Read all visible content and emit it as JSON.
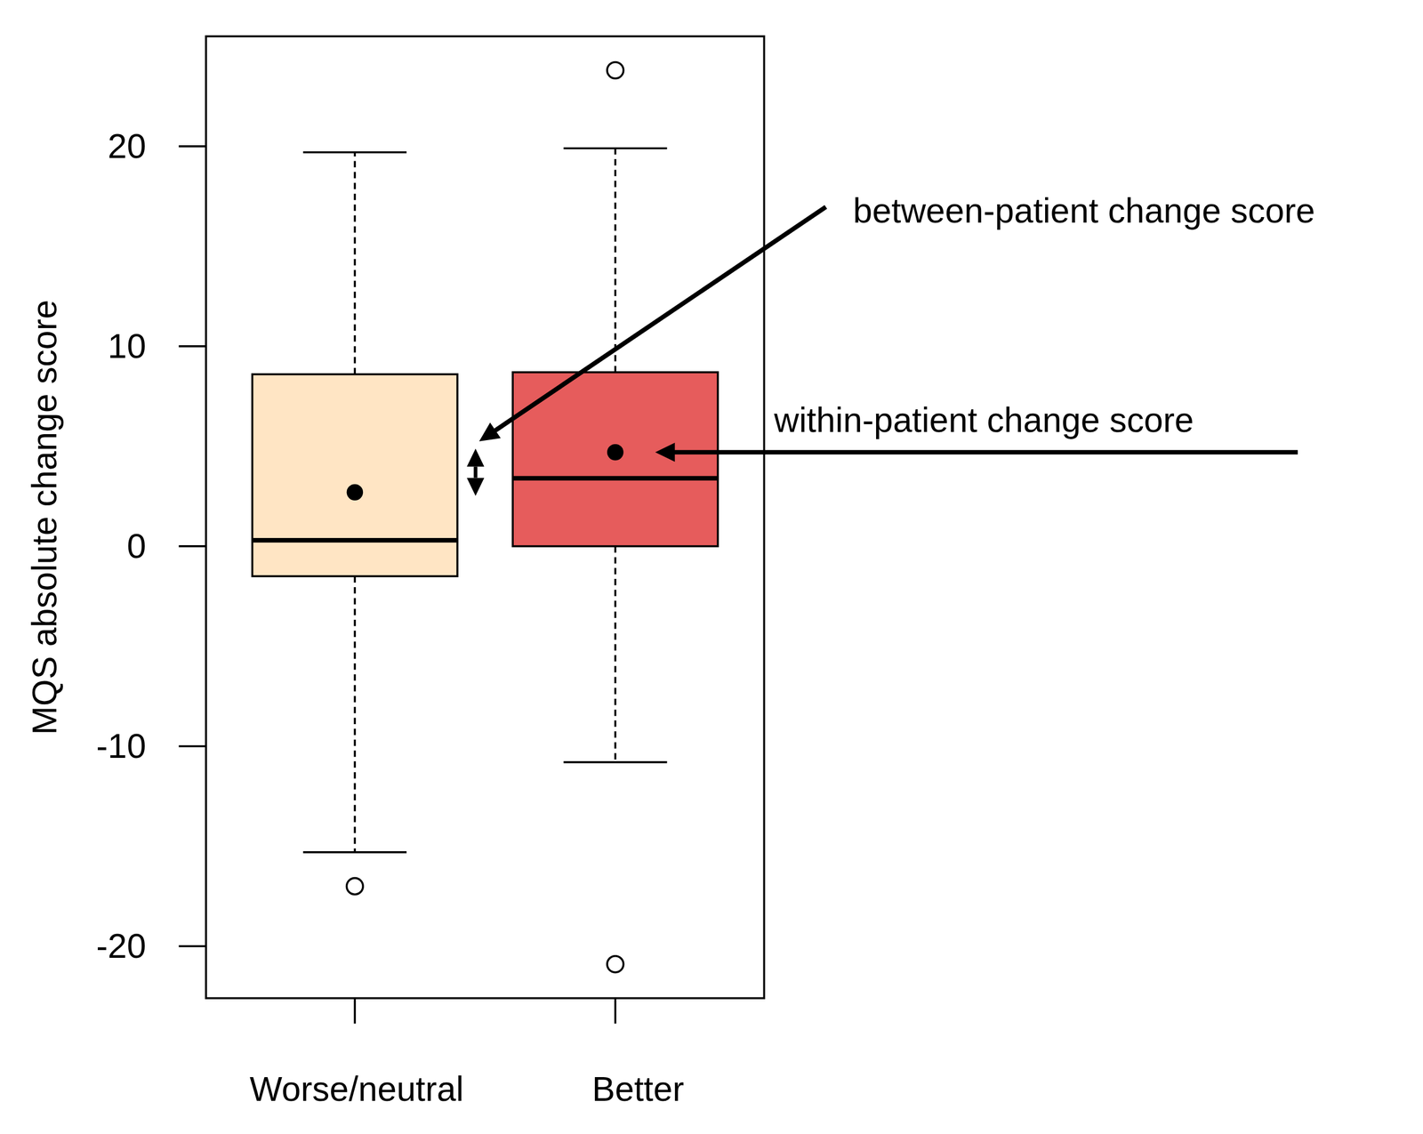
{
  "chart_data": {
    "type": "box",
    "y_label": "MQS absolute change score",
    "categories": [
      "Worse/neutral",
      "Better"
    ],
    "colors": [
      "#ffe5c4",
      "#e65c5c"
    ],
    "whisker_low": [
      -15.3,
      -10.8
    ],
    "q1": [
      -1.5,
      0
    ],
    "median": [
      0.3,
      3.4
    ],
    "q3": [
      8.6,
      8.7
    ],
    "whisker_high": [
      19.7,
      19.9
    ],
    "mean": [
      2.7,
      4.7
    ],
    "outliers": [
      [
        -17
      ],
      [
        23.8,
        -20.9
      ]
    ],
    "ylim": [
      -22.6,
      25.5
    ],
    "yticks": [
      -20,
      -10,
      0,
      10,
      20
    ],
    "annotations": [
      {
        "text": "between-patient change score"
      },
      {
        "text": "within-patient change score"
      }
    ]
  }
}
